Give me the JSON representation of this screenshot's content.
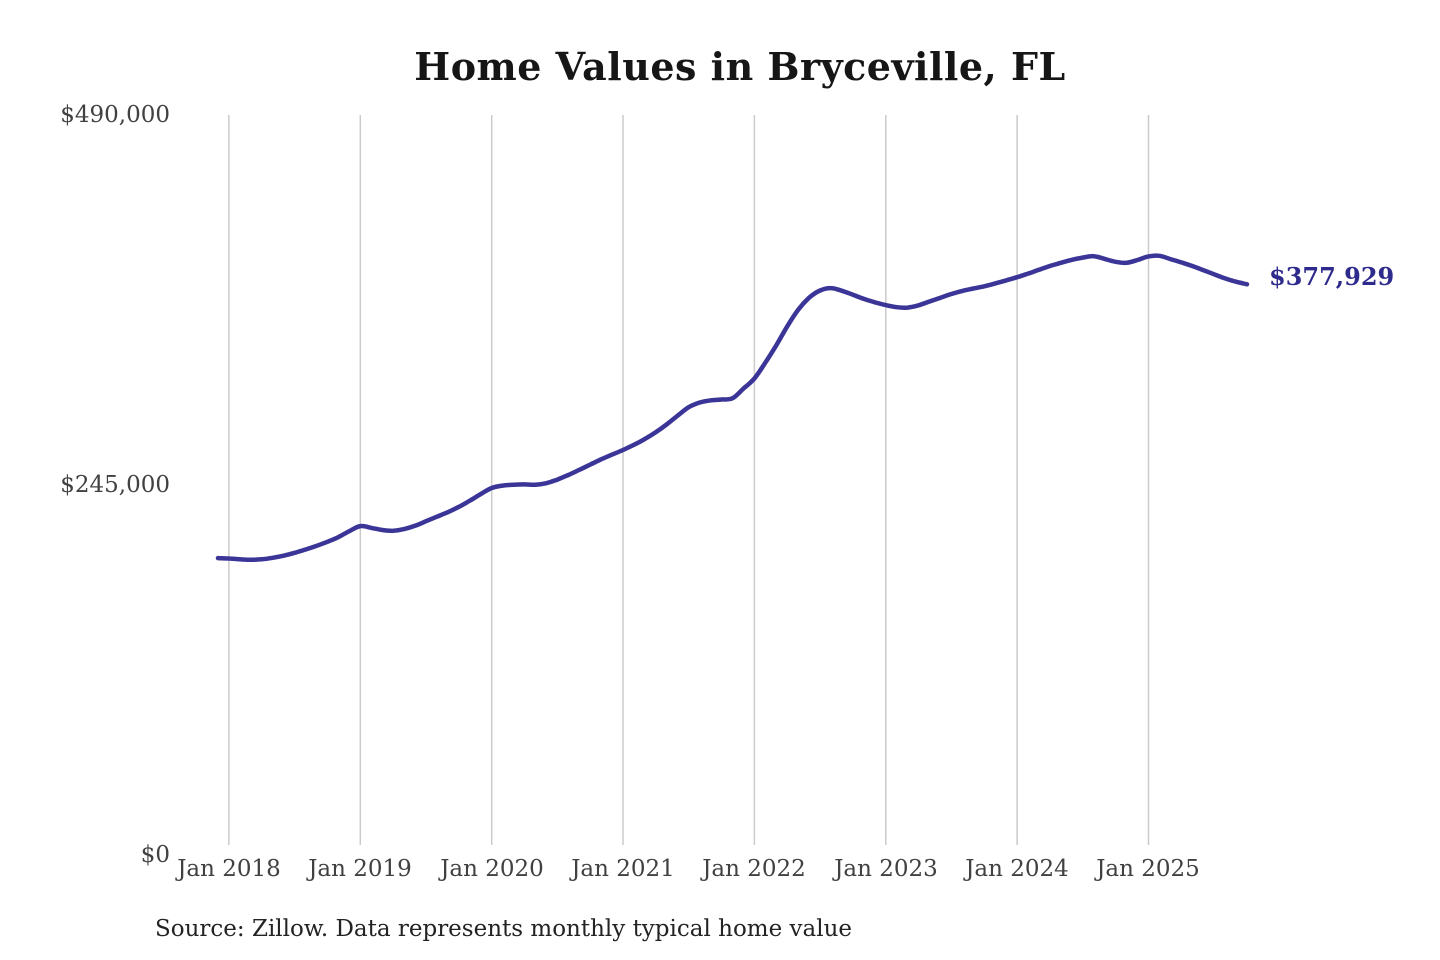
{
  "title": "Home Values in Bryceville, FL",
  "source_note": "Source: Zillow. Data represents monthly typical home value",
  "latest_value_label": "$377,929",
  "colors": {
    "background": "#ffffff",
    "line": "#3b3597",
    "latest_value_label": "#2f2b8d",
    "gridline": "#cbcbcb",
    "axis_text": "#414141",
    "title_text": "#161616",
    "source_text": "#232323"
  },
  "chart_data": {
    "type": "line",
    "title": "Home Values in Bryceville, FL",
    "xlabel": "",
    "ylabel": "",
    "ylim": [
      0,
      490000
    ],
    "grid": "vertical-only",
    "legend_position": "none",
    "series_name": "Monthly typical home value (USD)",
    "x": [
      "2017-12",
      "2018-01",
      "2018-02",
      "2018-03",
      "2018-04",
      "2018-05",
      "2018-06",
      "2018-07",
      "2018-08",
      "2018-09",
      "2018-10",
      "2018-11",
      "2018-12",
      "2019-01",
      "2019-02",
      "2019-03",
      "2019-04",
      "2019-05",
      "2019-06",
      "2019-07",
      "2019-08",
      "2019-09",
      "2019-10",
      "2019-11",
      "2019-12",
      "2020-01",
      "2020-02",
      "2020-03",
      "2020-04",
      "2020-05",
      "2020-06",
      "2020-07",
      "2020-08",
      "2020-09",
      "2020-10",
      "2020-11",
      "2020-12",
      "2021-01",
      "2021-02",
      "2021-03",
      "2021-04",
      "2021-05",
      "2021-06",
      "2021-07",
      "2021-08",
      "2021-09",
      "2021-10",
      "2021-11",
      "2021-12",
      "2022-01",
      "2022-02",
      "2022-03",
      "2022-04",
      "2022-05",
      "2022-06",
      "2022-07",
      "2022-08",
      "2022-09",
      "2022-10",
      "2022-11",
      "2022-12",
      "2023-01",
      "2023-02",
      "2023-03",
      "2023-04",
      "2023-05",
      "2023-06",
      "2023-07",
      "2023-08",
      "2023-09",
      "2023-10",
      "2023-11",
      "2023-12",
      "2024-01",
      "2024-02",
      "2024-03",
      "2024-04",
      "2024-05",
      "2024-06",
      "2024-07",
      "2024-08",
      "2024-09",
      "2024-10",
      "2024-11",
      "2024-12",
      "2025-01",
      "2025-02",
      "2025-03",
      "2025-04",
      "2025-05",
      "2025-06",
      "2025-07",
      "2025-08",
      "2025-09",
      "2025-10"
    ],
    "values": [
      196600,
      196300,
      195800,
      195500,
      195800,
      196800,
      198200,
      200100,
      202300,
      204700,
      207400,
      210500,
      214500,
      217800,
      216600,
      215200,
      214700,
      215800,
      218000,
      221000,
      224000,
      227000,
      230500,
      234600,
      239000,
      243000,
      244600,
      245200,
      245400,
      245200,
      246200,
      248600,
      251600,
      255000,
      258500,
      262000,
      265100,
      268200,
      271600,
      275500,
      280000,
      285200,
      291000,
      296500,
      299600,
      301000,
      301600,
      302400,
      308800,
      315500,
      326000,
      337500,
      350000,
      361000,
      369000,
      373800,
      375400,
      373600,
      371000,
      368200,
      366000,
      364100,
      362700,
      362500,
      364000,
      366500,
      369000,
      371500,
      373500,
      375100,
      376600,
      378500,
      380500,
      382600,
      385000,
      387500,
      390000,
      392100,
      394100,
      395600,
      396500,
      394700,
      392800,
      392100,
      394000,
      396400,
      396800,
      394600,
      392400,
      390000,
      387300,
      384500,
      381800,
      379600,
      377929
    ],
    "y_ticks": [
      {
        "value": 490000,
        "label": "$490,000"
      },
      {
        "value": 245000,
        "label": "$245,000"
      },
      {
        "value": 0,
        "label": "$0"
      }
    ],
    "x_ticks": [
      {
        "month": "2018-01",
        "label": "Jan 2018"
      },
      {
        "month": "2019-01",
        "label": "Jan 2019"
      },
      {
        "month": "2020-01",
        "label": "Jan 2020"
      },
      {
        "month": "2021-01",
        "label": "Jan 2021"
      },
      {
        "month": "2022-01",
        "label": "Jan 2022"
      },
      {
        "month": "2023-01",
        "label": "Jan 2023"
      },
      {
        "month": "2024-01",
        "label": "Jan 2024"
      },
      {
        "month": "2025-01",
        "label": "Jan 2025"
      }
    ],
    "end_annotation": {
      "text": "$377,929",
      "position": "right-of-last-point"
    }
  }
}
